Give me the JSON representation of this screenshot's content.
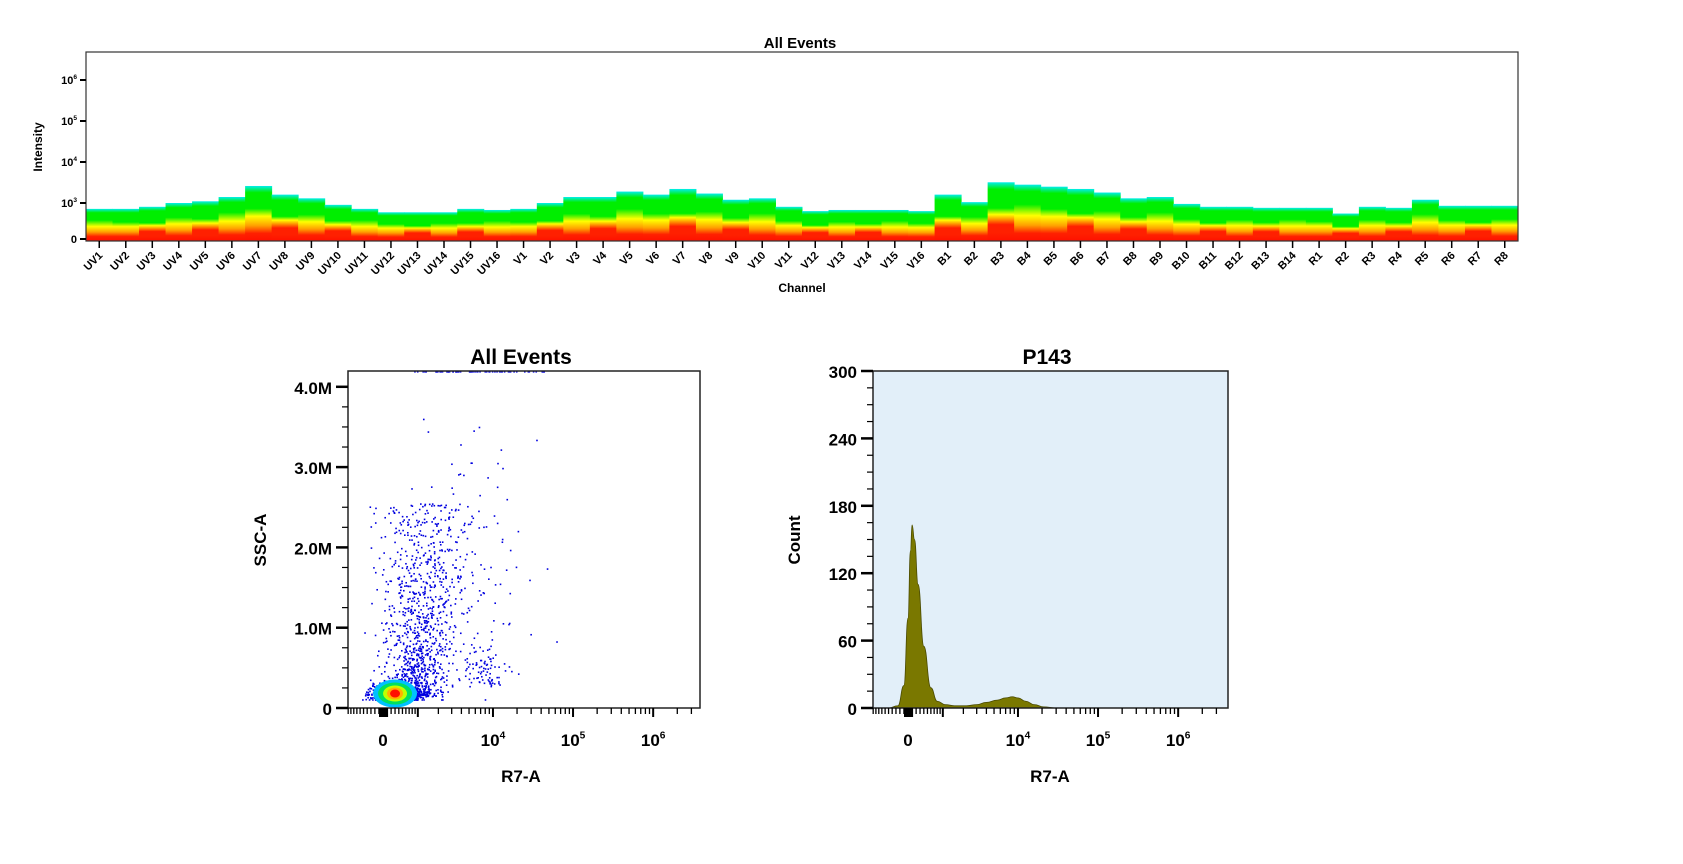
{
  "chart_data": [
    {
      "type": "heatmap",
      "title": "All Events",
      "xlabel": "Channel",
      "ylabel": "Intensity",
      "ytick_labels": [
        "0",
        "10^3",
        "10^4",
        "10^5",
        "10^6"
      ],
      "categories": [
        "UV1",
        "UV2",
        "UV3",
        "UV4",
        "UV5",
        "UV6",
        "UV7",
        "UV8",
        "UV9",
        "UV10",
        "UV11",
        "UV12",
        "UV13",
        "UV14",
        "UV15",
        "UV16",
        "V1",
        "V2",
        "V3",
        "V4",
        "V5",
        "V6",
        "V7",
        "V8",
        "V9",
        "V10",
        "V11",
        "V12",
        "V13",
        "V14",
        "V15",
        "V16",
        "B1",
        "B2",
        "B3",
        "B4",
        "B5",
        "B6",
        "B7",
        "B8",
        "B9",
        "B10",
        "B11",
        "B12",
        "B13",
        "B14",
        "R1",
        "R2",
        "R3",
        "R4",
        "R5",
        "R6",
        "R7",
        "R8"
      ],
      "max_intensity": [
        700,
        700,
        800,
        1000,
        1100,
        1400,
        2600,
        1600,
        1300,
        900,
        700,
        550,
        550,
        550,
        700,
        650,
        700,
        1000,
        1400,
        1400,
        1900,
        1600,
        2200,
        1700,
        1200,
        1300,
        800,
        600,
        650,
        650,
        650,
        600,
        1600,
        1050,
        3200,
        2800,
        2500,
        2200,
        1800,
        1300,
        1400,
        950,
        800,
        800,
        750,
        750,
        750,
        500,
        800,
        750,
        1200,
        850,
        850,
        850
      ],
      "colors": {
        "low": "#ff2000",
        "mid": "#ffff00",
        "high": "#00ee00",
        "edge": "#00eeee"
      }
    },
    {
      "type": "scatter",
      "title": "All Events",
      "xlabel": "R7-A",
      "ylabel": "SSC-A",
      "xtick_labels": [
        "0",
        "10^4",
        "10^5",
        "10^6"
      ],
      "ytick_labels": [
        "0",
        "1.0M",
        "2.0M",
        "3.0M",
        "4.0M"
      ],
      "xlim": [
        -1000,
        3900000
      ],
      "ylim": [
        0,
        4200000
      ],
      "populations": [
        {
          "x_center": 300,
          "y_center": 180000,
          "count": 900
        },
        {
          "x_center": 900,
          "y_center": 900000,
          "count": 1100
        },
        {
          "x_center": 8000,
          "y_center": 270000,
          "count": 90
        },
        {
          "x_center": 5000,
          "y_center": 1800000,
          "count": 90
        }
      ],
      "point_color": "#0000e0"
    },
    {
      "type": "area",
      "title": "P143",
      "xlabel": "R7-A",
      "ylabel": "Count",
      "xtick_labels": [
        "0",
        "10^4",
        "10^5",
        "10^6"
      ],
      "ytick_labels": [
        "0",
        "60",
        "120",
        "180",
        "240",
        "300"
      ],
      "xlim": [
        -1000,
        3900000
      ],
      "ylim": [
        0,
        300
      ],
      "x": [
        -1000,
        -500,
        -250,
        -100,
        0,
        60,
        100,
        160,
        250,
        400,
        600,
        800,
        1100,
        1500,
        2200,
        3000,
        4000,
        5500,
        7000,
        8500,
        10000,
        12500,
        16000,
        21000,
        30000,
        3900000
      ],
      "y": [
        0,
        0,
        2,
        20,
        80,
        140,
        163,
        150,
        110,
        55,
        18,
        6,
        3,
        2,
        2,
        3,
        5,
        7,
        9,
        10,
        9,
        6,
        3,
        1,
        0,
        0
      ],
      "fill_color": "#7a7800",
      "background_color": "#e2eff9"
    }
  ]
}
